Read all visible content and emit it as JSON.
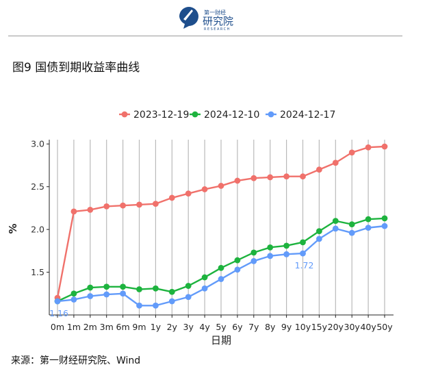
{
  "logo": {
    "text_cn": "第一财经",
    "text_main": "研究院",
    "text_en": "RESEARCH"
  },
  "figure_title": "图9 国债到期收益率曲线",
  "source": "来源：第一财经研究院、Wind",
  "chart_data": {
    "type": "line",
    "categories": [
      "0m",
      "1m",
      "2m",
      "3m",
      "6m",
      "9m",
      "1y",
      "2y",
      "3y",
      "4y",
      "5y",
      "6y",
      "7y",
      "8y",
      "9y",
      "10y",
      "15y",
      "20y",
      "30y",
      "40y",
      "50y"
    ],
    "series": [
      {
        "name": "2023-12-19",
        "color": "#F0716B",
        "values": [
          1.2,
          2.21,
          2.23,
          2.27,
          2.28,
          2.29,
          2.3,
          2.37,
          2.42,
          2.47,
          2.51,
          2.57,
          2.6,
          2.61,
          2.62,
          2.62,
          2.7,
          2.78,
          2.9,
          2.96,
          2.97
        ]
      },
      {
        "name": "2024-12-10",
        "color": "#1DB33E",
        "values": [
          1.16,
          1.25,
          1.32,
          1.33,
          1.33,
          1.3,
          1.31,
          1.27,
          1.34,
          1.44,
          1.55,
          1.64,
          1.73,
          1.79,
          1.81,
          1.85,
          1.98,
          2.1,
          2.06,
          2.12,
          2.13
        ]
      },
      {
        "name": "2024-12-17",
        "color": "#629BFA",
        "values": [
          1.16,
          1.18,
          1.22,
          1.24,
          1.25,
          1.11,
          1.11,
          1.16,
          1.21,
          1.31,
          1.42,
          1.53,
          1.63,
          1.69,
          1.71,
          1.72,
          1.89,
          2.01,
          1.96,
          2.02,
          2.04
        ]
      }
    ],
    "annotations": [
      {
        "series": 2,
        "index": 0,
        "text": "1.16"
      },
      {
        "series": 2,
        "index": 15,
        "text": "1.72"
      }
    ],
    "xlabel": "日期",
    "ylabel": "%",
    "ylim": [
      1.0,
      3.05
    ],
    "yticks": [
      1.5,
      2.0,
      2.5,
      3.0
    ],
    "ytick_labels": [
      "1.5",
      "2.0",
      "2.5",
      "3.0"
    ],
    "grid": "vertical",
    "legend_position": "top"
  }
}
